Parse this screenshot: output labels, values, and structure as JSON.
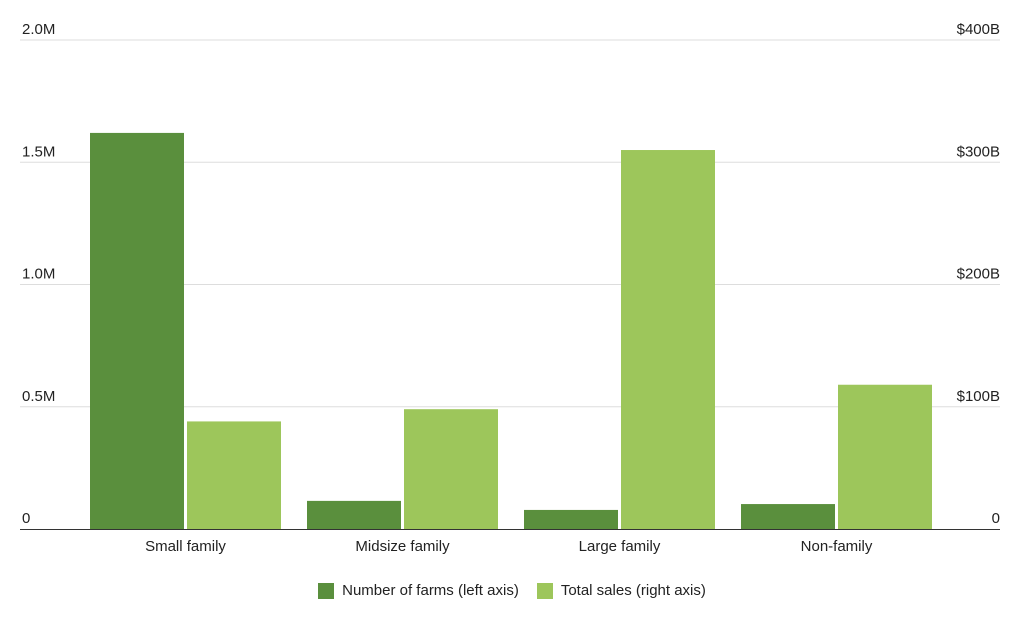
{
  "chart_data": {
    "type": "bar",
    "categories": [
      "Small family",
      "Midsize family",
      "Large family",
      "Non-family"
    ],
    "series": [
      {
        "name": "Number of farms (left axis)",
        "axis": "left",
        "color": "#5a8f3d",
        "values": [
          1620000,
          115000,
          78000,
          102000
        ]
      },
      {
        "name": "Total sales (right axis)",
        "axis": "right",
        "color": "#9dc65b",
        "values": [
          88,
          98,
          310,
          118
        ]
      }
    ],
    "left_axis": {
      "ylim": [
        0,
        2000000
      ],
      "ticks": [
        0,
        500000,
        1000000,
        1500000,
        2000000
      ],
      "tick_labels": [
        "0",
        "0.5M",
        "1.0M",
        "1.5M",
        "2.0M"
      ]
    },
    "right_axis": {
      "ylim": [
        0,
        400
      ],
      "unit": "billion USD",
      "ticks": [
        0,
        100,
        200,
        300,
        400
      ],
      "tick_labels": [
        "0",
        "$100B",
        "$200B",
        "$300B",
        "$400B"
      ]
    },
    "grid": true,
    "legend_placement": "bottom"
  }
}
